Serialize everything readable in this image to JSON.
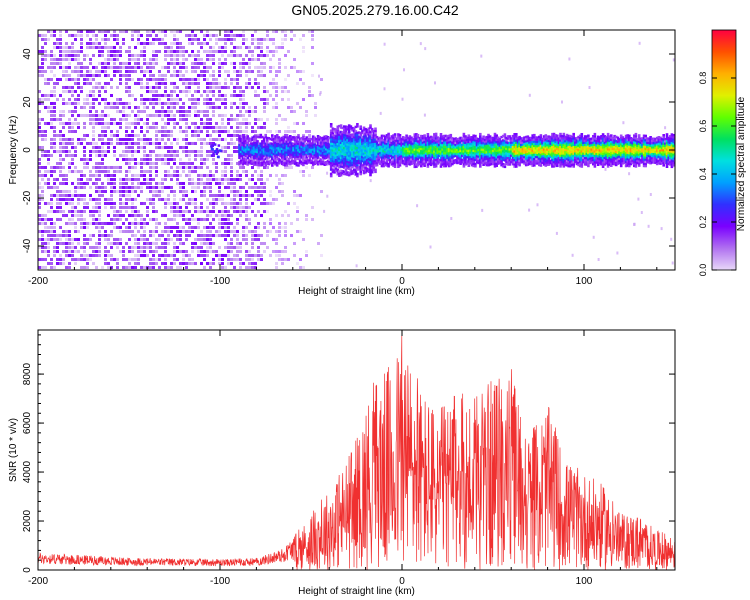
{
  "title": "GN05.2025.279.16.00.C42",
  "colors": {
    "background": "#ffffff",
    "snr_line": "#f03030",
    "spectrogram_noise": "#7a2ee8",
    "colorbar_stops": [
      "#e8d8f8",
      "#b070f0",
      "#7a00ff",
      "#3030ff",
      "#00a0ff",
      "#00e0e0",
      "#00e060",
      "#60ff00",
      "#e0f000",
      "#ffb000",
      "#ff5000",
      "#ff0040"
    ]
  },
  "chart_data": [
    {
      "type": "heatmap",
      "xlabel": "Height of straight line (km)",
      "ylabel": "Frequency (Hz)",
      "xlim": [
        -200,
        150
      ],
      "ylim": [
        -50,
        50
      ],
      "x_ticks": [
        -200,
        -100,
        0,
        100
      ],
      "y_ticks": [
        -40,
        -20,
        0,
        20,
        40
      ],
      "colorbar": {
        "label": "Normalized spectral amplitude",
        "range": [
          0.0,
          1.0
        ],
        "ticks": [
          "0.0",
          "0.2",
          "0.4",
          "0.6",
          "0.8"
        ]
      },
      "features": {
        "noise_region_x": [
          -200,
          -50
        ],
        "signal_band_x": [
          -90,
          150
        ],
        "signal_center_hz": 0,
        "signal_peak_amplitude_range": [
          0.3,
          0.95
        ]
      },
      "grid": false
    },
    {
      "type": "line",
      "xlabel": "Height of straight line (km)",
      "ylabel": "SNR (10 * v/v)",
      "xlim": [
        -200,
        150
      ],
      "ylim": [
        0,
        9800
      ],
      "x_ticks": [
        -200,
        -100,
        0,
        100
      ],
      "y_ticks": [
        0,
        2000,
        4000,
        6000,
        8000
      ],
      "envelope": {
        "x": [
          -200,
          -150,
          -100,
          -80,
          -65,
          -55,
          -45,
          -35,
          -25,
          -15,
          -5,
          0,
          10,
          20,
          30,
          40,
          50,
          60,
          70,
          80,
          90,
          100,
          110,
          120,
          130,
          140,
          150
        ],
        "max": [
          700,
          500,
          450,
          480,
          900,
          1800,
          2800,
          3800,
          5500,
          7800,
          8500,
          9600,
          7500,
          6500,
          7300,
          7000,
          7800,
          8300,
          5500,
          6800,
          4500,
          4000,
          3500,
          2300,
          2300,
          1600,
          1400
        ]
      },
      "grid": false
    }
  ]
}
